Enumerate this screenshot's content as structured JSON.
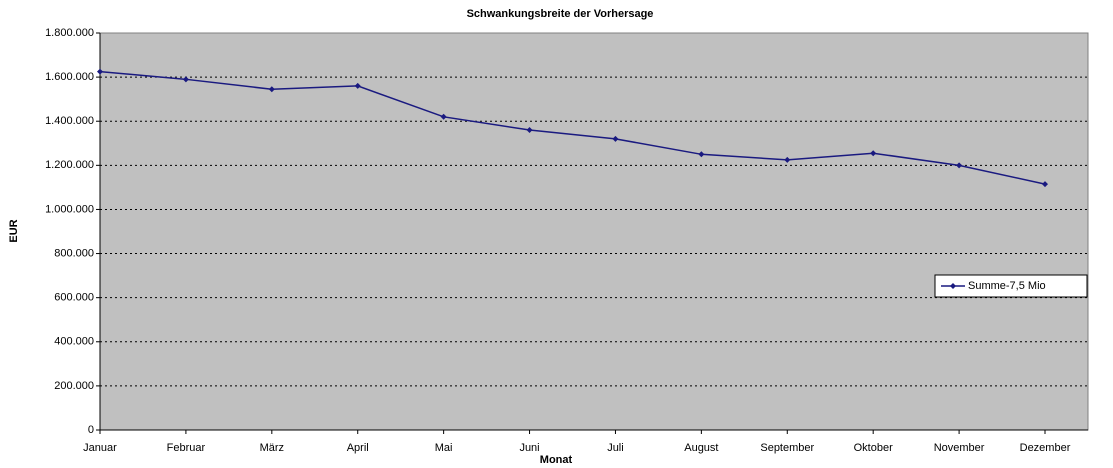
{
  "chart_data": {
    "type": "line",
    "title": "Schwankungsbreite der Vorhersage",
    "x_label": "Monat",
    "y_label": "EUR",
    "categories": [
      "Januar",
      "Februar",
      "März",
      "April",
      "Mai",
      "Juni",
      "Juli",
      "August",
      "September",
      "Oktober",
      "November",
      "Dezember"
    ],
    "series": [
      {
        "name": "Summe-7,5 Mio",
        "color": "#1a1a80",
        "values": [
          1625000,
          1590000,
          1545000,
          1560000,
          1420000,
          1360000,
          1320000,
          1250000,
          1225000,
          1255000,
          1200000,
          1115000
        ]
      }
    ],
    "ylim": [
      0,
      1800000
    ],
    "yticks": [
      0,
      {
        "value": 200000,
        "label": "200.000"
      },
      {
        "value": 400000,
        "label": "400.000"
      },
      {
        "value": 600000,
        "label": "600.000"
      },
      {
        "value": 800000,
        "label": "800.000"
      },
      {
        "value": 1000000,
        "label": "1.000.000"
      },
      {
        "value": 1200000,
        "label": "1.200.000"
      },
      {
        "value": 1400000,
        "label": "1.400.000"
      },
      {
        "value": 1600000,
        "label": "1.600.000"
      },
      {
        "value": 1800000,
        "label": "1.800.000"
      }
    ],
    "grid": true,
    "legend": "right",
    "plot_background": "#c0c0c0"
  }
}
